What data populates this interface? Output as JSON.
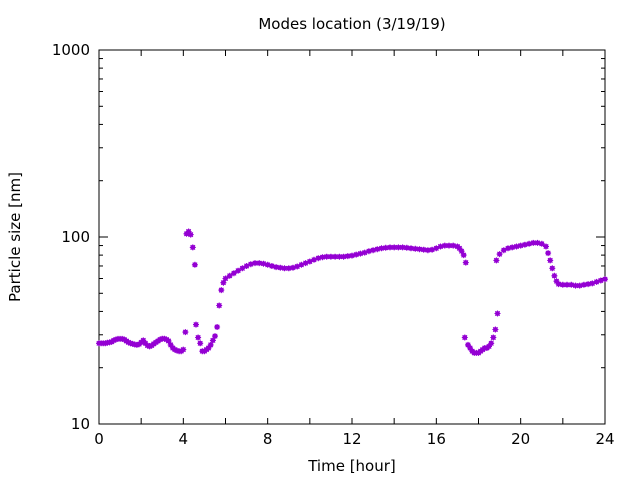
{
  "chart_data": {
    "type": "scatter",
    "title": "Modes location (3/19/19)",
    "xlabel": "Time [hour]",
    "ylabel": "Particle size [nm]",
    "xlim": [
      0,
      24
    ],
    "ylim": [
      10,
      1000
    ],
    "yscale": "log",
    "xticks": [
      "0",
      "4",
      "8",
      "12",
      "16",
      "20",
      "24"
    ],
    "xtick_values": [
      0,
      4,
      8,
      12,
      16,
      20,
      24
    ],
    "yticks": [
      "10",
      "100",
      "1000"
    ],
    "ytick_values": [
      10,
      100,
      1000
    ],
    "grid": false,
    "marker_color": "#9400D3",
    "series": [
      {
        "points": [
          [
            0.0,
            27
          ],
          [
            0.1,
            27
          ],
          [
            0.2,
            27
          ],
          [
            0.3,
            27
          ],
          [
            0.4,
            27.2
          ],
          [
            0.5,
            27.3
          ],
          [
            0.6,
            27.5
          ],
          [
            0.7,
            28
          ],
          [
            0.8,
            28.3
          ],
          [
            0.9,
            28.5
          ],
          [
            1.0,
            28.5
          ],
          [
            1.1,
            28.5
          ],
          [
            1.2,
            28.3
          ],
          [
            1.3,
            27.8
          ],
          [
            1.4,
            27.3
          ],
          [
            1.5,
            27
          ],
          [
            1.6,
            26.8
          ],
          [
            1.7,
            26.6
          ],
          [
            1.8,
            26.5
          ],
          [
            1.9,
            26.7
          ],
          [
            2.0,
            27.3
          ],
          [
            2.1,
            28
          ],
          [
            2.2,
            27
          ],
          [
            2.3,
            26.3
          ],
          [
            2.4,
            26
          ],
          [
            2.5,
            26.3
          ],
          [
            2.6,
            26.8
          ],
          [
            2.7,
            27.3
          ],
          [
            2.8,
            27.8
          ],
          [
            2.9,
            28.3
          ],
          [
            3.0,
            28.6
          ],
          [
            3.1,
            28.6
          ],
          [
            3.2,
            28.3
          ],
          [
            3.3,
            27.8
          ],
          [
            3.4,
            26.5
          ],
          [
            3.5,
            25.5
          ],
          [
            3.6,
            25
          ],
          [
            3.7,
            24.7
          ],
          [
            3.8,
            24.5
          ],
          [
            3.9,
            24.5
          ],
          [
            4.0,
            25
          ],
          [
            4.1,
            31
          ],
          [
            4.15,
            104
          ],
          [
            4.25,
            107
          ],
          [
            4.35,
            103
          ],
          [
            4.45,
            88
          ],
          [
            4.55,
            71
          ],
          [
            4.6,
            34
          ],
          [
            4.7,
            29
          ],
          [
            4.8,
            27
          ],
          [
            4.9,
            24.5
          ],
          [
            5.0,
            24.5
          ],
          [
            5.1,
            25
          ],
          [
            5.2,
            25.5
          ],
          [
            5.3,
            26.5
          ],
          [
            5.4,
            28
          ],
          [
            5.5,
            29.5
          ],
          [
            5.6,
            33
          ],
          [
            5.7,
            43
          ],
          [
            5.8,
            52
          ],
          [
            5.9,
            57
          ],
          [
            6.0,
            60
          ],
          [
            6.2,
            62
          ],
          [
            6.4,
            64
          ],
          [
            6.6,
            66
          ],
          [
            6.8,
            68
          ],
          [
            7.0,
            70
          ],
          [
            7.2,
            71.5
          ],
          [
            7.4,
            72.5
          ],
          [
            7.6,
            72.5
          ],
          [
            7.8,
            72
          ],
          [
            8.0,
            71
          ],
          [
            8.2,
            70
          ],
          [
            8.4,
            69
          ],
          [
            8.6,
            68.5
          ],
          [
            8.8,
            68
          ],
          [
            9.0,
            68
          ],
          [
            9.2,
            68.5
          ],
          [
            9.4,
            69.5
          ],
          [
            9.6,
            71
          ],
          [
            9.8,
            72.5
          ],
          [
            10.0,
            74
          ],
          [
            10.2,
            75.5
          ],
          [
            10.4,
            77
          ],
          [
            10.6,
            78
          ],
          [
            10.8,
            78.5
          ],
          [
            11.0,
            78.5
          ],
          [
            11.2,
            78.5
          ],
          [
            11.4,
            78.5
          ],
          [
            11.6,
            78.5
          ],
          [
            11.8,
            79
          ],
          [
            12.0,
            79.5
          ],
          [
            12.2,
            80.5
          ],
          [
            12.4,
            81.5
          ],
          [
            12.6,
            82.5
          ],
          [
            12.8,
            84
          ],
          [
            13.0,
            85
          ],
          [
            13.2,
            86
          ],
          [
            13.4,
            87
          ],
          [
            13.6,
            87.5
          ],
          [
            13.8,
            88
          ],
          [
            14.0,
            88
          ],
          [
            14.2,
            88
          ],
          [
            14.4,
            88
          ],
          [
            14.6,
            87.5
          ],
          [
            14.8,
            87
          ],
          [
            15.0,
            86.5
          ],
          [
            15.2,
            86
          ],
          [
            15.4,
            85.5
          ],
          [
            15.6,
            85
          ],
          [
            15.8,
            85.5
          ],
          [
            16.0,
            87
          ],
          [
            16.2,
            89
          ],
          [
            16.4,
            90
          ],
          [
            16.6,
            90
          ],
          [
            16.8,
            90
          ],
          [
            17.0,
            89
          ],
          [
            17.1,
            87
          ],
          [
            17.2,
            84
          ],
          [
            17.3,
            80
          ],
          [
            17.4,
            73
          ],
          [
            17.35,
            29
          ],
          [
            17.5,
            26.5
          ],
          [
            17.6,
            25.5
          ],
          [
            17.7,
            24.5
          ],
          [
            17.8,
            24
          ],
          [
            17.9,
            24
          ],
          [
            18.0,
            24
          ],
          [
            18.1,
            24.5
          ],
          [
            18.2,
            25
          ],
          [
            18.3,
            25.5
          ],
          [
            18.4,
            25.5
          ],
          [
            18.5,
            26
          ],
          [
            18.6,
            27
          ],
          [
            18.7,
            29
          ],
          [
            18.8,
            32
          ],
          [
            18.9,
            39
          ],
          [
            18.85,
            75
          ],
          [
            19.0,
            81
          ],
          [
            19.2,
            85
          ],
          [
            19.4,
            87
          ],
          [
            19.6,
            88
          ],
          [
            19.8,
            89
          ],
          [
            20.0,
            90
          ],
          [
            20.2,
            91
          ],
          [
            20.4,
            92
          ],
          [
            20.6,
            93
          ],
          [
            20.8,
            93
          ],
          [
            21.0,
            92
          ],
          [
            21.2,
            89
          ],
          [
            21.3,
            82
          ],
          [
            21.4,
            75
          ],
          [
            21.5,
            68
          ],
          [
            21.6,
            62
          ],
          [
            21.7,
            58
          ],
          [
            21.8,
            56
          ],
          [
            22.0,
            55.5
          ],
          [
            22.2,
            55.5
          ],
          [
            22.4,
            55.5
          ],
          [
            22.6,
            55
          ],
          [
            22.8,
            55
          ],
          [
            23.0,
            55.5
          ],
          [
            23.2,
            56
          ],
          [
            23.4,
            56.5
          ],
          [
            23.6,
            57.5
          ],
          [
            23.8,
            58.5
          ],
          [
            24.0,
            59.5
          ]
        ]
      }
    ]
  }
}
